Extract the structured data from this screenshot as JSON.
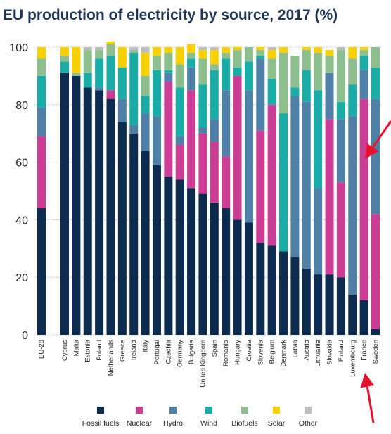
{
  "chart_data": {
    "type": "bar",
    "stacked": true,
    "title": "EU production of electricity by source, 2017 (%)",
    "xlabel": "",
    "ylabel": "",
    "ylim": [
      0,
      100
    ],
    "yticks": [
      "0",
      "20",
      "40",
      "60",
      "80",
      "100"
    ],
    "grid": true,
    "legend_position": "bottom",
    "categories": [
      "EU-28",
      "Cyprus",
      "Malta",
      "Estonia",
      "Poland",
      "Netherlands",
      "Greece",
      "Ireland",
      "Italy",
      "Portugal",
      "Czechia",
      "Germany",
      "Bulgaria",
      "United Kingdom",
      "Spain",
      "Romania",
      "Hungary",
      "Croatia",
      "Slovenia",
      "Belgium",
      "Denmark",
      "Latvia",
      "Austria",
      "Lithuania",
      "Slovakia",
      "Finland",
      "Luxembourg",
      "France",
      "Sweden"
    ],
    "series": [
      {
        "name": "Fossil fuels",
        "color": "#0d2a4f",
        "values": [
          44,
          91,
          90,
          86,
          85,
          82,
          74,
          70,
          64,
          59,
          55,
          54,
          51,
          49,
          46,
          44,
          40,
          39,
          32,
          31,
          29,
          27,
          23,
          21,
          21,
          20,
          14,
          12,
          2
        ]
      },
      {
        "name": "Nuclear",
        "color": "#cc3d95",
        "values": [
          25,
          0,
          0,
          0,
          0,
          3,
          0,
          0,
          0,
          0,
          33,
          12,
          34,
          21,
          21,
          18,
          50,
          0,
          39,
          49,
          0,
          0,
          0,
          0,
          54,
          33,
          0,
          70,
          40
        ]
      },
      {
        "name": "Hydro",
        "color": "#4f81a8",
        "values": [
          10,
          0,
          0,
          0,
          1,
          0,
          8,
          3,
          13,
          17,
          3,
          3,
          8,
          2,
          8,
          23,
          0,
          46,
          25,
          0,
          0,
          56,
          58,
          30,
          16,
          22,
          62,
          10,
          40
        ]
      },
      {
        "name": "Wind",
        "color": "#1aada8",
        "values": [
          11,
          4,
          0,
          5,
          10,
          12,
          11,
          25,
          6,
          16,
          1,
          17,
          3,
          15,
          17,
          11,
          3,
          10,
          1,
          9,
          48,
          3,
          11,
          34,
          0,
          6,
          11,
          5,
          11
        ]
      },
      {
        "name": "Biofuels",
        "color": "#8dbf8e",
        "values": [
          6,
          2,
          1,
          8,
          3,
          4,
          0,
          1,
          7,
          5,
          6,
          8,
          2,
          9,
          2,
          2,
          6,
          5,
          2,
          7,
          21,
          11,
          7,
          13,
          6,
          18,
          9,
          2,
          7
        ]
      },
      {
        "name": "Solar",
        "color": "#f8d000",
        "values": [
          4,
          3,
          9,
          0,
          0,
          1,
          7,
          0,
          8,
          3,
          2,
          6,
          3,
          3,
          5,
          2,
          1,
          0,
          1,
          3,
          2,
          0,
          1,
          2,
          2,
          0,
          4,
          1,
          0
        ]
      },
      {
        "name": "Other",
        "color": "#bfbfbf",
        "values": [
          0,
          0,
          0,
          1,
          1,
          0,
          0,
          1,
          2,
          0,
          0,
          0,
          0,
          1,
          1,
          0,
          0,
          0,
          0,
          1,
          0,
          0,
          0,
          0,
          0,
          1,
          0,
          0,
          0
        ]
      }
    ],
    "annotations": [
      {
        "type": "arrow",
        "color": "#e8112d",
        "target": "France"
      },
      {
        "type": "arrow",
        "color": "#e8112d",
        "target": "France label"
      }
    ]
  }
}
